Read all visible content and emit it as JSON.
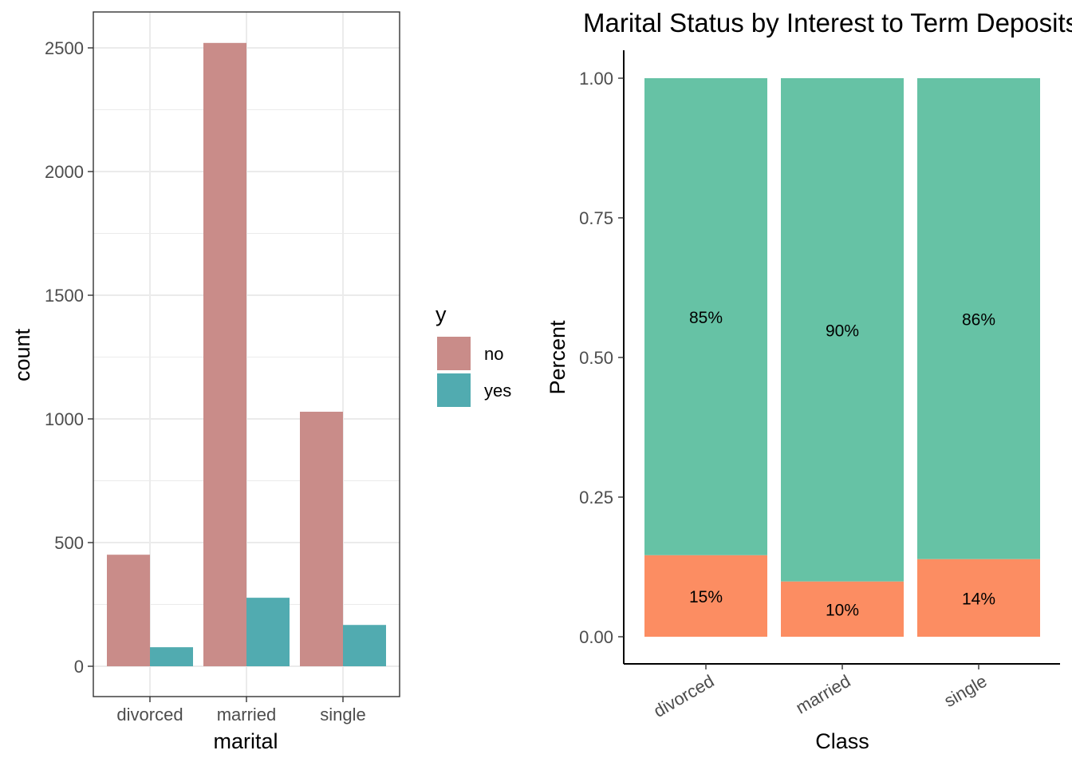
{
  "chart_data": [
    {
      "type": "bar",
      "title": "",
      "xlabel": "marital",
      "ylabel": "count",
      "categories": [
        "divorced",
        "married",
        "single"
      ],
      "ylim": [
        0,
        2750
      ],
      "yticks": [
        0,
        500,
        1000,
        1500,
        2000,
        2500
      ],
      "ytick_labels": [
        "0",
        "500",
        "1000",
        "1500",
        "2000",
        "2500"
      ],
      "grid": true,
      "legend": {
        "title": "y",
        "position": "right"
      },
      "series": [
        {
          "name": "no",
          "color": "#c98c89",
          "values": [
            451,
            2520,
            1029
          ]
        },
        {
          "name": "yes",
          "color": "#51abb0",
          "values": [
            77,
            277,
            167
          ]
        }
      ]
    },
    {
      "type": "bar",
      "stacked": true,
      "title": "Marital Status by Interest to Term Deposits",
      "xlabel": "Class",
      "ylabel": "Percent",
      "categories": [
        "divorced",
        "married",
        "single"
      ],
      "ylim": [
        0,
        1.05
      ],
      "yticks": [
        0,
        0.25,
        0.5,
        0.75,
        1.0
      ],
      "ytick_labels": [
        "0.00",
        "0.25",
        "0.50",
        "0.75",
        "1.00"
      ],
      "grid": false,
      "series": [
        {
          "color": "#fc8d62",
          "values": [
            0.146,
            0.099,
            0.139
          ],
          "labels": [
            "15%",
            "10%",
            "14%"
          ]
        },
        {
          "color": "#66c2a5",
          "values": [
            0.854,
            0.901,
            0.861
          ],
          "labels": [
            "85%",
            "90%",
            "86%"
          ]
        }
      ]
    }
  ]
}
